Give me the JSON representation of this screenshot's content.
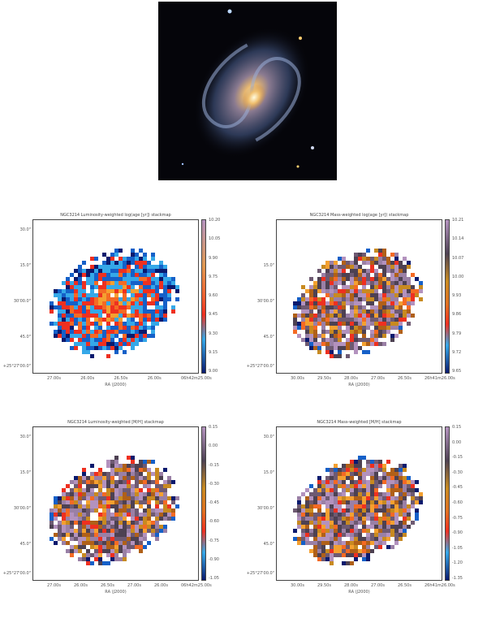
{
  "colors": {
    "blue_ramp": [
      "#0a1a6e",
      "#1560c8",
      "#35a8e8"
    ],
    "red_ramp": [
      "#ee3020",
      "#f46a24",
      "#f4a030"
    ],
    "orange_ramp": [
      "#b06018",
      "#c88a20"
    ],
    "mauve_ramp": [
      "#b392be",
      "#9a80a6",
      "#6e5a72"
    ],
    "dark": "#4d4152"
  },
  "panels": [
    {
      "title": "NGC3214 Luminosity-weighted log(age [yr]) stackmap",
      "ylabels": [
        "30.0\"",
        "15.0\"",
        "30'00.0\"",
        "45.0\"",
        "+25°27'00.0\""
      ],
      "xticks": [
        "27.00s",
        "26.00s",
        "26.50s",
        "26.00s",
        "06h42m25.00s"
      ],
      "xlabel": "RA (J2000)",
      "cbar_ticks": [
        "10.20",
        "10.05",
        "9.90",
        "9.75",
        "9.60",
        "9.45",
        "9.30",
        "9.15",
        "9.00"
      ],
      "cmap": "age"
    },
    {
      "title": "NGC3214 Mass-weighted log(age [yr]) stackmap",
      "ylabels": [
        "",
        "15.0\"",
        "30'00.0\"",
        "45.0\"",
        "+25°27'00.0\""
      ],
      "xticks": [
        "30.00s",
        "29.50s",
        "28.00s",
        "27.00s",
        "26.50s",
        "26h41m26.00s"
      ],
      "xlabel": "RA (J2000)",
      "cbar_ticks": [
        "10.21",
        "10.14",
        "10.07",
        "10.00",
        "9.93",
        "9.86",
        "9.79",
        "9.72",
        "9.65"
      ],
      "cmap": "div"
    },
    {
      "title": "NGC3214 Luminosity-weighted [M/H] stackmap",
      "ylabels": [
        "30.0\"",
        "15.0\"",
        "30'00.0\"",
        "45.0\"",
        "+25°27'00.0\""
      ],
      "xticks": [
        "27.00s",
        "26.00s",
        "26.50s",
        "27.00s",
        "26.00s",
        "06h42m25.00s"
      ],
      "xlabel": "RA (J2000)",
      "cbar_ticks": [
        "0.15",
        "0.00",
        "-0.15",
        "-0.30",
        "-0.45",
        "-0.60",
        "-0.75",
        "-0.90",
        "-1.05"
      ],
      "cmap": "div"
    },
    {
      "title": "NGC3214 Mass-weighted [M/H] stackmap",
      "ylabels": [
        "30.0\"",
        "15.0\"",
        "30'00.0\"",
        "45.0\"",
        "+25°27'00.0\""
      ],
      "xticks": [
        "30.00s",
        "29.50s",
        "28.00s",
        "27.00s",
        "26.50s",
        "26h41m26.00s"
      ],
      "xlabel": "RA (J2000)",
      "cbar_ticks": [
        "0.15",
        "0.00",
        "-0.15",
        "-0.30",
        "-0.45",
        "-0.60",
        "-0.75",
        "-0.90",
        "-1.05",
        "-1.20",
        "-1.35"
      ],
      "cmap": "div"
    }
  ]
}
